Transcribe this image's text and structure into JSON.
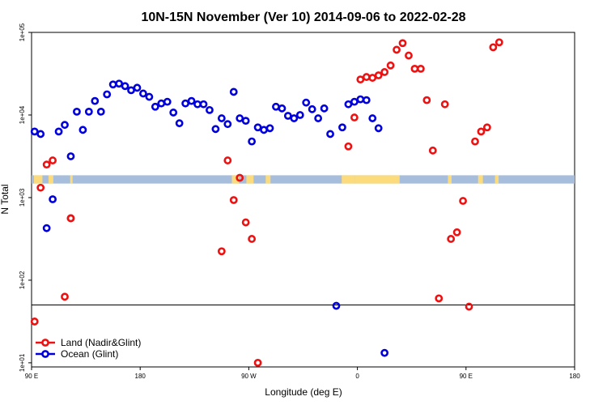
{
  "chart_data": {
    "type": "scatter",
    "title": "10N-15N November (Ver 10)   2014-09-06 to 2022-02-28",
    "xlabel": "Longitude (deg E)",
    "ylabel": "N Total",
    "xlim": [
      90,
      450
    ],
    "ylim_log10": [
      0.95,
      5.0
    ],
    "y_scale": "log",
    "x_ticks": [
      {
        "value": 90,
        "label": "90 E"
      },
      {
        "value": 180,
        "label": "180"
      },
      {
        "value": 270,
        "label": "90 W"
      },
      {
        "value": 360,
        "label": "0"
      },
      {
        "value": 450,
        "label": "90 E"
      },
      {
        "value": 540,
        "label": "180"
      }
    ],
    "y_ticks": [
      {
        "value": 1,
        "label": "1e+01"
      },
      {
        "value": 2,
        "label": "1e+02"
      },
      {
        "value": 3,
        "label": "1e+03"
      },
      {
        "value": 4,
        "label": "1e+04"
      },
      {
        "value": 5,
        "label": "1e+05"
      }
    ],
    "x_display_max": 540,
    "reference_line_log10": 1.7,
    "land_band": {
      "y_log10_min": 3.17,
      "y_log10_max": 3.27
    },
    "legend_position": "bottom-left",
    "colors": {
      "land": "#ee1111",
      "ocean": "#0000dd",
      "band_ocean": "#a6bddb",
      "band_land": "#fbdb7c"
    },
    "series": [
      {
        "name": "Land (Nadir&Glint)",
        "color": "#ee1111",
        "x": [
          92.5,
          97.5,
          102.5,
          107.5,
          117.5,
          122.5,
          122.5,
          247.5,
          252.5,
          257.5,
          262.5,
          267.5,
          272.5,
          277.5,
          352.5,
          357.5,
          362.5,
          367.5,
          372.5,
          377.5,
          382.5,
          387.5,
          392.5,
          397.5,
          402.5,
          407.5,
          412.5,
          417.5,
          422.5,
          427.5,
          432.5,
          437.5,
          442.5,
          447.5,
          452.5,
          457.5,
          462.5,
          467.5,
          472.5,
          477.5
        ],
        "y": [
          1.5,
          3.12,
          3.4,
          3.45,
          1.8,
          2.75,
          2.75,
          2.35,
          3.45,
          2.97,
          3.24,
          2.7,
          2.5,
          1.0,
          3.62,
          3.97,
          4.43,
          4.46,
          4.45,
          4.48,
          4.52,
          4.6,
          4.79,
          4.87,
          4.72,
          4.56,
          4.56,
          4.18,
          3.57,
          1.78,
          4.13,
          2.5,
          2.58,
          2.96,
          1.68,
          3.68,
          3.8,
          3.85,
          4.82,
          4.88
        ]
      },
      {
        "name": "Ocean (Glint)",
        "color": "#0000dd",
        "x": [
          92.5,
          97.5,
          102.5,
          107.5,
          112.5,
          117.5,
          122.5,
          127.5,
          132.5,
          137.5,
          142.5,
          147.5,
          152.5,
          157.5,
          162.5,
          167.5,
          172.5,
          177.5,
          182.5,
          187.5,
          192.5,
          197.5,
          202.5,
          207.5,
          212.5,
          217.5,
          222.5,
          227.5,
          232.5,
          237.5,
          242.5,
          247.5,
          252.5,
          257.5,
          262.5,
          267.5,
          272.5,
          277.5,
          282.5,
          287.5,
          292.5,
          297.5,
          302.5,
          307.5,
          312.5,
          317.5,
          322.5,
          327.5,
          332.5,
          337.5,
          342.5,
          347.5,
          352.5,
          357.5,
          362.5,
          367.5,
          372.5,
          377.5,
          382.5
        ],
        "y": [
          3.8,
          3.77,
          2.63,
          2.98,
          3.8,
          3.88,
          3.5,
          4.04,
          3.82,
          4.04,
          4.17,
          4.04,
          4.25,
          4.37,
          4.38,
          4.35,
          4.3,
          4.33,
          4.26,
          4.22,
          4.1,
          4.14,
          4.16,
          4.03,
          3.9,
          4.14,
          4.17,
          4.13,
          4.13,
          4.06,
          3.83,
          3.96,
          3.89,
          4.28,
          3.96,
          3.93,
          3.68,
          3.85,
          3.82,
          3.84,
          4.1,
          4.08,
          3.99,
          3.96,
          4.0,
          4.15,
          4.07,
          3.96,
          4.08,
          3.77,
          1.69,
          3.85,
          4.13,
          4.16,
          4.19,
          4.18,
          3.96,
          3.84,
          1.12
        ]
      }
    ]
  }
}
